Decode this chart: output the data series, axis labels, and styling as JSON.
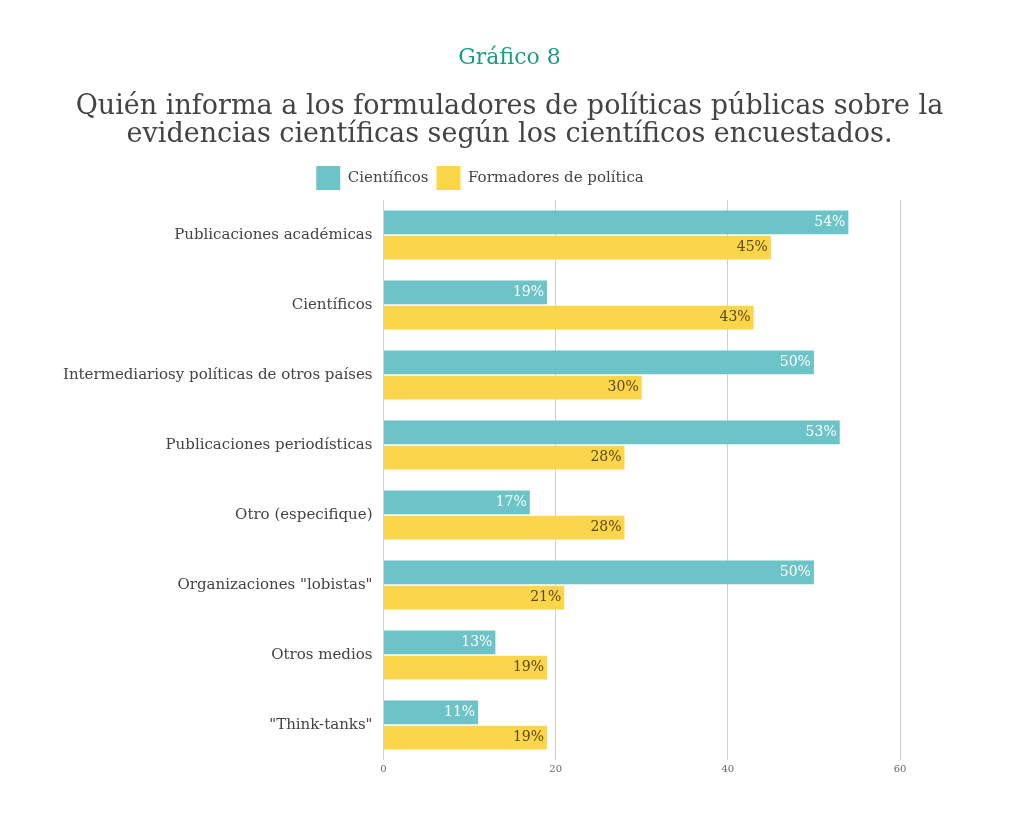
{
  "chart_data": {
    "type": "bar",
    "orientation": "horizontal",
    "title": "Gráfico 8",
    "subtitle": "Quién informa a los formuladores de políticas públicas sobre la evidencias científicas según los científicos encuestados.",
    "categories": [
      "Publicaciones académicas",
      "Científicos",
      "Intermediariosy políticas de otros países",
      "Publicaciones periodísticas",
      "Otro (especifique)",
      "Organizaciones \"lobistas\"",
      "Otros medios",
      "\"Think-tanks\""
    ],
    "series": [
      {
        "name": "Científicos",
        "color": "#6cc3c8",
        "values": [
          54,
          19,
          50,
          53,
          17,
          50,
          13,
          11
        ],
        "value_labels": [
          "54%",
          "19%",
          "50%",
          "53%",
          "17%",
          "50%",
          "13%",
          "11%"
        ]
      },
      {
        "name": "Formadores de política",
        "color": "#fbd54a",
        "values": [
          45,
          43,
          30,
          28,
          28,
          21,
          19,
          19
        ],
        "value_labels": [
          "45%",
          "43%",
          "30%",
          "28%",
          "28%",
          "21%",
          "19%",
          "19%"
        ]
      }
    ],
    "xlim": [
      0,
      60
    ],
    "xticks": [
      0,
      20,
      40,
      60
    ],
    "grid": "x",
    "legend": "top"
  }
}
